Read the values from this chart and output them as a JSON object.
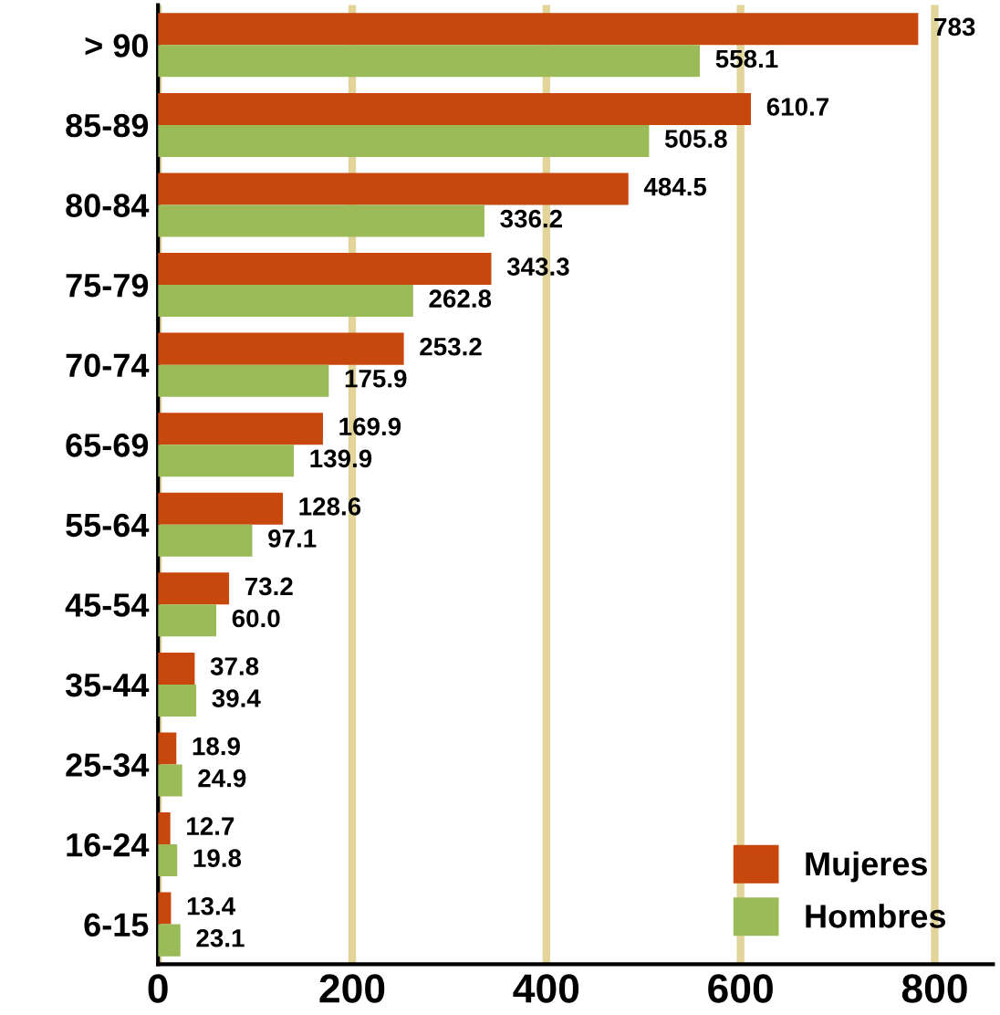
{
  "chart_data": {
    "type": "bar",
    "orientation": "horizontal",
    "categories": [
      "> 90",
      "85-89",
      "80-84",
      "75-79",
      "70-74",
      "65-69",
      "55-64",
      "45-54",
      "35-44",
      "25-34",
      "16-24",
      "6-15"
    ],
    "series": [
      {
        "name": "Mujeres",
        "color": "#c8470c",
        "values": [
          783,
          610.7,
          484.5,
          343.3,
          253.2,
          169.9,
          128.6,
          73.2,
          37.8,
          18.9,
          12.7,
          13.4
        ],
        "value_labels": [
          "783",
          "610.7",
          "484.5",
          "343.3",
          "253.2",
          "169.9",
          "128.6",
          "73.2",
          "37.8",
          "18.9",
          "12.7",
          "13.4"
        ]
      },
      {
        "name": "Hombres",
        "color": "#9bbb59",
        "values": [
          558.1,
          505.8,
          336.2,
          262.8,
          175.9,
          139.9,
          97.1,
          60.0,
          39.4,
          24.9,
          19.8,
          23.1
        ],
        "value_labels": [
          "558.1",
          "505.8",
          "336.2",
          "262.8",
          "175.9",
          "139.9",
          "97.1",
          "60.0",
          "39.4",
          "24.9",
          "19.8",
          "23.1"
        ]
      }
    ],
    "xlim": [
      0,
      860
    ],
    "xticks": [
      0,
      200,
      400,
      600,
      800
    ],
    "grid": "x",
    "legend": "bottom right"
  }
}
